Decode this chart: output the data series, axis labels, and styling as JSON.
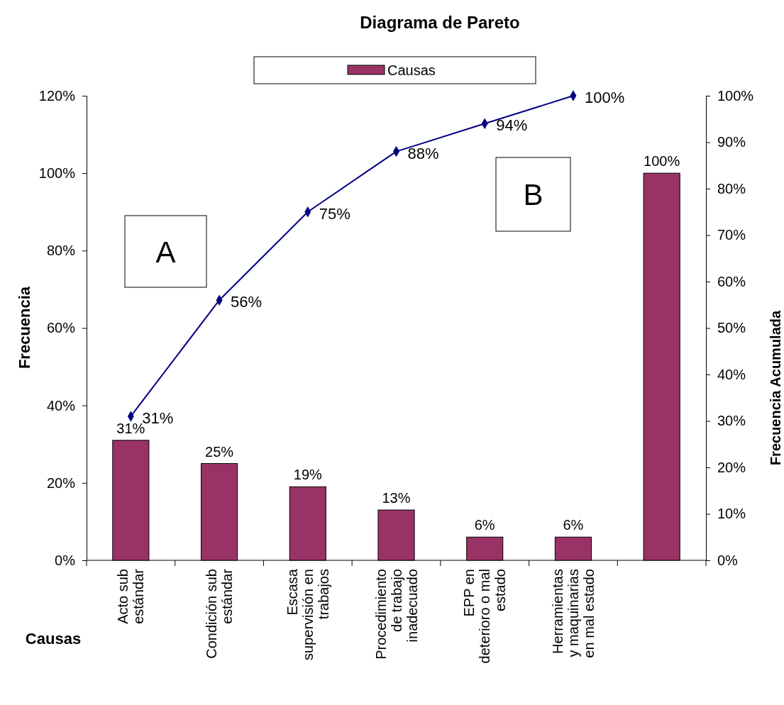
{
  "chart_data": {
    "type": "bar",
    "title": "Diagrama de Pareto",
    "xlabel": "Causas",
    "ylabel": "Frecuencia",
    "y2label": "Frecuencia Acumulada",
    "categories": [
      "Acto sub\nestándar",
      "Condición sub\nestándar",
      "Escasa\nsupervisión en\ntrabajos",
      "Procedimiento\nde trabajo\ninadecuado",
      "EPP en\ndeterioro o mal\nestado",
      "Herramientas\ny maquinarias\nen mal estado",
      null
    ],
    "series": [
      {
        "name": "Causas",
        "color": "#993366",
        "values": [
          31,
          25,
          19,
          13,
          6,
          6,
          100
        ],
        "value_labels": [
          "31%",
          "25%",
          "19%",
          "13%",
          "6%",
          "6%",
          "100%"
        ]
      },
      {
        "type": "line",
        "axis": "y2",
        "color": "#000080",
        "marker": "diamond",
        "values": [
          31,
          56,
          75,
          88,
          94,
          100,
          null
        ],
        "value_labels": [
          "31%",
          "56%",
          "75%",
          "88%",
          "94%",
          "100%",
          null
        ]
      }
    ],
    "ylim": [
      0,
      120
    ],
    "yticks": [
      {
        "value": 0,
        "label": "0%"
      },
      {
        "value": 20,
        "label": "20%"
      },
      {
        "value": 40,
        "label": "40%"
      },
      {
        "value": 60,
        "label": "60%"
      },
      {
        "value": 80,
        "label": "80%"
      },
      {
        "value": 100,
        "label": "100%"
      },
      {
        "value": 120,
        "label": "120%"
      }
    ],
    "y2lim": [
      0,
      100
    ],
    "y2ticks": [
      {
        "value": 0,
        "label": "0%"
      },
      {
        "value": 10,
        "label": "10%"
      },
      {
        "value": 20,
        "label": "20%"
      },
      {
        "value": 30,
        "label": "30%"
      },
      {
        "value": 40,
        "label": "40%"
      },
      {
        "value": 50,
        "label": "50%"
      },
      {
        "value": 60,
        "label": "60%"
      },
      {
        "value": 70,
        "label": "70%"
      },
      {
        "value": 80,
        "label": "80%"
      },
      {
        "value": 90,
        "label": "90%"
      },
      {
        "value": 100,
        "label": "100%"
      }
    ],
    "annotations": [
      "A",
      "B"
    ],
    "legend": "top",
    "grid": false
  }
}
